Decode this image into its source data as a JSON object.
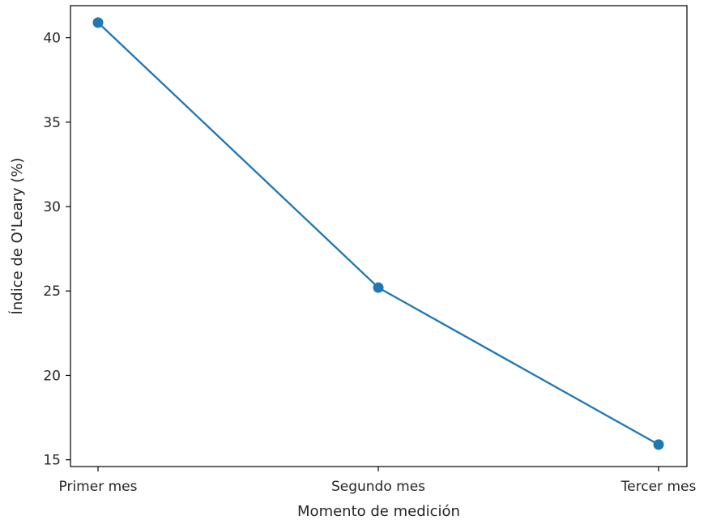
{
  "chart_data": {
    "type": "line",
    "title": "",
    "xlabel": "Momento de medición",
    "ylabel": "Índice de O'Leary (%)",
    "categories": [
      "Primer mes",
      "Segundo mes",
      "Tercer mes"
    ],
    "series": [
      {
        "values": [
          40.9,
          25.2,
          15.9
        ],
        "color": "#1f77b4",
        "marker": "circle"
      }
    ],
    "ylim": [
      14.6,
      41.9
    ],
    "yticks": [
      15,
      20,
      25,
      30,
      35,
      40
    ],
    "grid": false,
    "legend": "none"
  }
}
